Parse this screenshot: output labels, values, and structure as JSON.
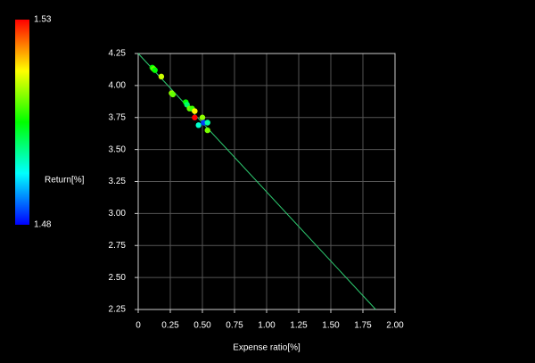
{
  "chart_data": {
    "type": "scatter",
    "xlabel": "Expense ratio[%]",
    "colorbar_label": "Return[%]",
    "x": [
      0.11,
      0.12,
      0.13,
      0.18,
      0.26,
      0.27,
      0.37,
      0.38,
      0.4,
      0.42,
      0.44,
      0.44,
      0.47,
      0.5,
      0.51,
      0.54,
      0.54
    ],
    "values": [
      4.14,
      4.13,
      4.12,
      4.07,
      3.94,
      3.93,
      3.87,
      3.85,
      3.82,
      3.82,
      3.8,
      3.75,
      3.69,
      3.75,
      3.71,
      3.71,
      3.65
    ],
    "z": [
      1.505,
      1.51,
      1.505,
      1.515,
      1.512,
      1.51,
      1.505,
      1.5,
      1.51,
      1.508,
      1.518,
      1.53,
      1.495,
      1.512,
      1.483,
      1.497,
      1.511
    ],
    "clim": [
      1.48,
      1.53
    ],
    "colorbar_ticks": [
      1.48,
      1.53
    ],
    "colormap": [
      "#0000ff",
      "#00ffff",
      "#00ff00",
      "#ffff00",
      "#ff0000"
    ],
    "line": {
      "x": [
        0,
        1.85
      ],
      "values": [
        4.25,
        2.25
      ],
      "color": "#2ecc71"
    },
    "xlim": [
      0,
      2
    ],
    "ylim": [
      2.25,
      4.25
    ],
    "xticks": [
      0,
      0.25,
      {
        "value": 0.5,
        "label": "0.50"
      },
      0.75,
      {
        "value": 1,
        "label": "1.00"
      },
      1.25,
      {
        "value": 1.5,
        "label": "1.50"
      },
      1.75,
      {
        "value": 2,
        "label": "2.00"
      }
    ],
    "yticks": [
      2.25,
      {
        "value": 2.5,
        "label": "2.50"
      },
      2.75,
      {
        "value": 3,
        "label": "3.00"
      },
      3.25,
      {
        "value": 3.5,
        "label": "3.50"
      },
      3.75,
      {
        "value": 4,
        "label": "4.00"
      },
      4.25
    ],
    "grid": true
  }
}
